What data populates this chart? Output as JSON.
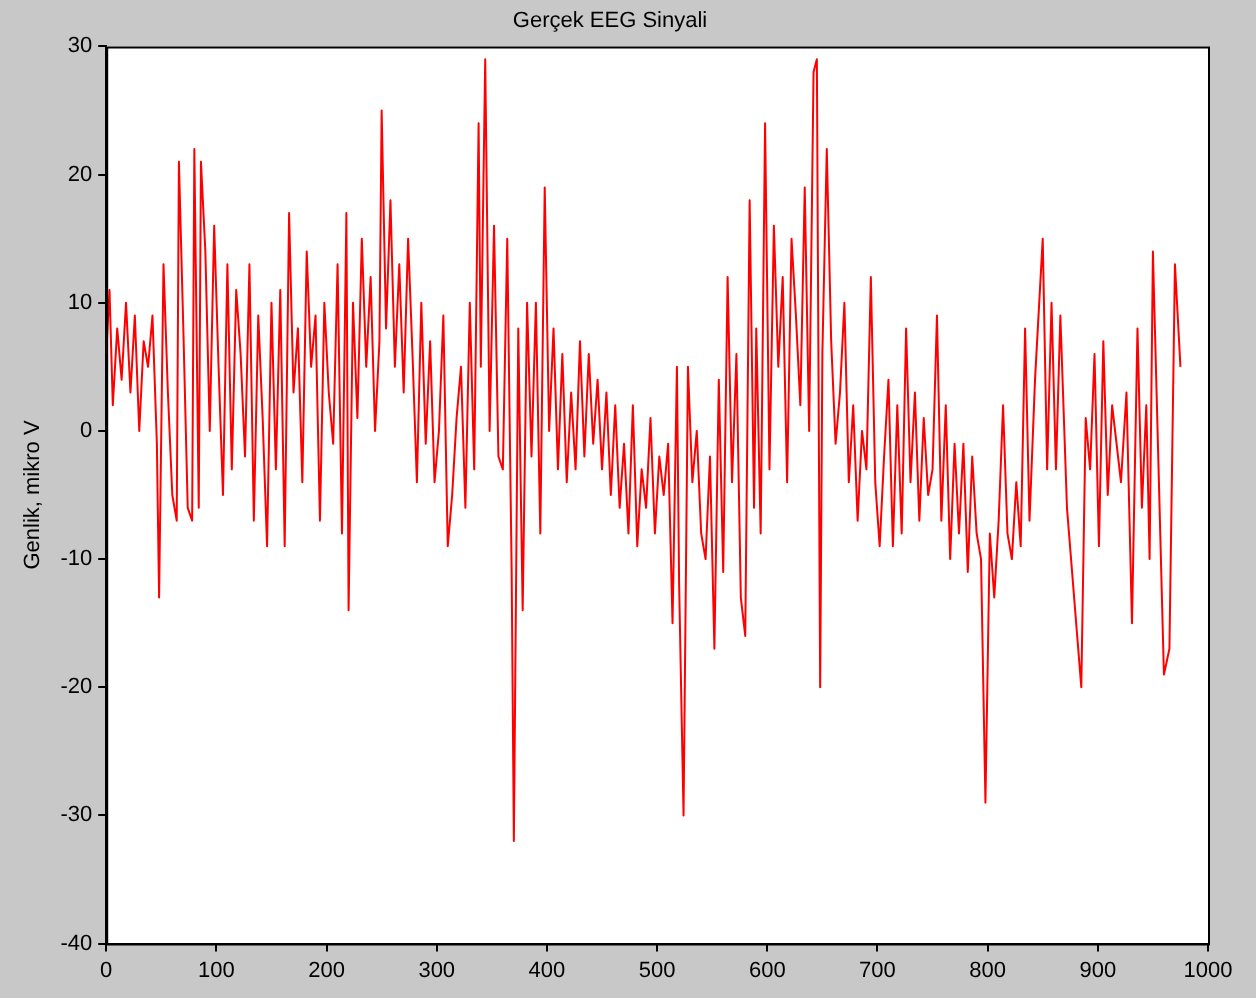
{
  "chart_data": {
    "type": "line",
    "title": "Gerçek EEG Sinyali",
    "ylabel": "Genlik, mikro V",
    "x": [
      0,
      3,
      6,
      10,
      14,
      18,
      22,
      26,
      30,
      34,
      38,
      42,
      46,
      48,
      52,
      56,
      60,
      64,
      66,
      70,
      74,
      78,
      80,
      84,
      86,
      90,
      94,
      98,
      102,
      106,
      110,
      114,
      118,
      122,
      126,
      130,
      134,
      138,
      142,
      146,
      150,
      154,
      158,
      162,
      166,
      170,
      174,
      178,
      182,
      186,
      190,
      194,
      198,
      202,
      206,
      210,
      214,
      218,
      220,
      224,
      228,
      232,
      236,
      240,
      244,
      248,
      250,
      254,
      258,
      262,
      266,
      270,
      274,
      278,
      282,
      286,
      290,
      294,
      298,
      302,
      306,
      310,
      314,
      318,
      322,
      326,
      330,
      334,
      338,
      340,
      344,
      348,
      352,
      356,
      360,
      364,
      368,
      370,
      374,
      378,
      382,
      386,
      390,
      394,
      398,
      402,
      406,
      410,
      414,
      418,
      422,
      426,
      430,
      434,
      438,
      442,
      446,
      450,
      454,
      458,
      462,
      466,
      470,
      474,
      478,
      482,
      486,
      490,
      494,
      498,
      502,
      506,
      510,
      514,
      518,
      520,
      524,
      528,
      532,
      536,
      540,
      544,
      548,
      552,
      556,
      560,
      564,
      568,
      572,
      576,
      580,
      584,
      588,
      590,
      594,
      598,
      602,
      606,
      610,
      614,
      618,
      622,
      626,
      630,
      634,
      638,
      642,
      645,
      648,
      650,
      654,
      658,
      662,
      666,
      670,
      674,
      678,
      682,
      686,
      690,
      694,
      698,
      702,
      706,
      710,
      714,
      718,
      722,
      726,
      730,
      734,
      738,
      742,
      746,
      750,
      754,
      758,
      762,
      766,
      770,
      774,
      778,
      782,
      786,
      790,
      794,
      798,
      802,
      806,
      810,
      814,
      818,
      822,
      826,
      830,
      834,
      838,
      843,
      850,
      854,
      858,
      862,
      866,
      872,
      885,
      889,
      893,
      897,
      901,
      905,
      909,
      913,
      917,
      921,
      926,
      931,
      936,
      940,
      944,
      947,
      950,
      960,
      965,
      970,
      975
    ],
    "series": [
      {
        "color": "#ff0000",
        "values": [
          6,
          11,
          2,
          8,
          4,
          10,
          3,
          9,
          0,
          7,
          5,
          9,
          -1,
          -13,
          13,
          3,
          -5,
          -7,
          21,
          8,
          -6,
          -7,
          22,
          -6,
          21,
          14,
          0,
          16,
          5,
          -5,
          13,
          -3,
          11,
          6,
          -2,
          13,
          -7,
          9,
          1,
          -9,
          10,
          -3,
          11,
          -9,
          17,
          3,
          8,
          -4,
          14,
          5,
          9,
          -7,
          10,
          3,
          -1,
          13,
          -8,
          17,
          -14,
          10,
          1,
          15,
          5,
          12,
          0,
          7,
          25,
          8,
          18,
          5,
          13,
          3,
          15,
          6,
          -4,
          10,
          -1,
          7,
          -4,
          0,
          9,
          -9,
          -5,
          1,
          5,
          -6,
          10,
          -3,
          24,
          5,
          29,
          0,
          16,
          -2,
          -3,
          15,
          -11,
          -32,
          8,
          -14,
          10,
          -2,
          10,
          -8,
          19,
          0,
          8,
          -3,
          6,
          -4,
          3,
          -3,
          7,
          -2,
          6,
          -1,
          4,
          -3,
          3,
          -5,
          2,
          -6,
          -1,
          -8,
          2,
          -9,
          -3,
          -6,
          1,
          -8,
          -2,
          -5,
          -1,
          -15,
          5,
          -12,
          -30,
          5,
          -4,
          0,
          -8,
          -10,
          -2,
          -17,
          4,
          -11,
          12,
          -4,
          6,
          -13,
          -16,
          18,
          -6,
          8,
          -8,
          24,
          -3,
          16,
          5,
          12,
          -4,
          15,
          9,
          2,
          19,
          0,
          28,
          29,
          -20,
          6,
          22,
          7,
          -1,
          3,
          10,
          -4,
          2,
          -7,
          0,
          -3,
          12,
          -4,
          -9,
          -2,
          4,
          -9,
          2,
          -8,
          8,
          -4,
          3,
          -7,
          1,
          -5,
          -3,
          9,
          -7,
          2,
          -10,
          -1,
          -8,
          -1,
          -11,
          -2,
          -8,
          -10,
          -29,
          -8,
          -13,
          -7,
          2,
          -8,
          -10,
          -4,
          -9,
          8,
          -7,
          4,
          15,
          -3,
          10,
          -3,
          9,
          -6,
          -20,
          1,
          -3,
          6,
          -9,
          7,
          -5,
          2,
          -1,
          -4,
          3,
          -15,
          8,
          -6,
          2,
          -10,
          14,
          -19,
          -17,
          13,
          5
        ]
      }
    ],
    "xlim": [
      0,
      1000
    ],
    "ylim": [
      -40,
      30
    ],
    "xticks": [
      0,
      100,
      200,
      300,
      400,
      500,
      600,
      700,
      800,
      900,
      1000
    ],
    "yticks": [
      -40,
      -30,
      -20,
      -10,
      0,
      10,
      20,
      30
    ],
    "grid": false,
    "legend": false,
    "marker": "none",
    "line_style": "solid"
  }
}
